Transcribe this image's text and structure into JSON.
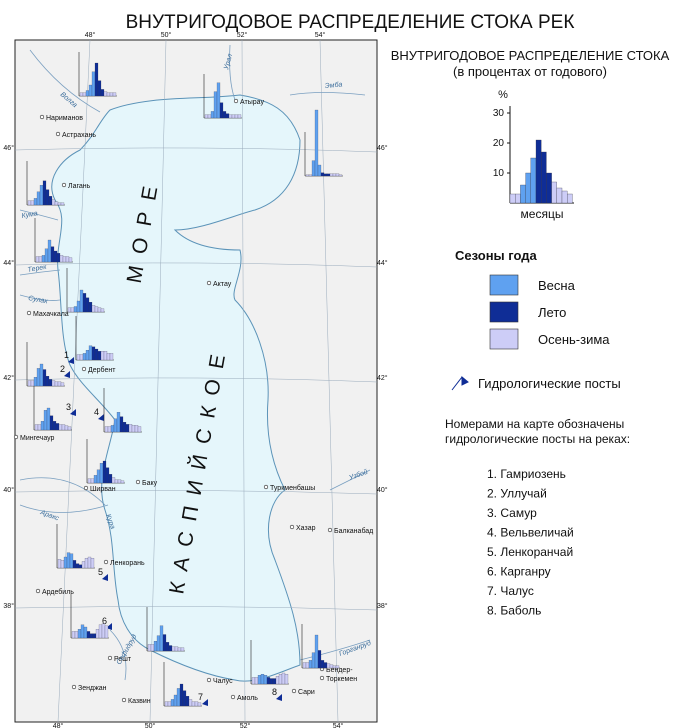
{
  "title": "ВНУТРИГОДОВОЕ РАСПРЕДЕЛЕНИЕ СТОКА РЕК",
  "legend": {
    "chart_title": "ВНУТРИГОДОВОЕ РАСПРЕДЕЛЕНИЕ СТОКА",
    "chart_subtitle": "(в процентах от годового)",
    "chart_data": {
      "type": "bar",
      "y_label": "%",
      "x_label": "месяцы",
      "values": [
        3,
        3,
        6,
        10,
        15,
        21,
        17,
        10,
        7,
        5,
        4,
        3
      ],
      "ylim": [
        0,
        35
      ],
      "yticks": [
        10,
        20,
        30
      ]
    },
    "seasons_title": "Сезоны года",
    "seasons": [
      {
        "name": "Весна",
        "color": "#5fa1f0"
      },
      {
        "name": "Лето",
        "color": "#0f2d96"
      },
      {
        "name": "Осень-зима",
        "color": "#cdcdf7"
      }
    ],
    "posts_label": "Гидрологические посты",
    "numbers_note": [
      "Номерами на карте обозначены",
      "гидрологические посты на реках:"
    ],
    "rivers_list": [
      "1. Гамриозень",
      "2. Уллучай",
      "3. Самур",
      "4. Вельвеличай",
      "5. Ленкоранчай",
      "6. Карганру",
      "7. Чалус",
      "8. Баболь"
    ]
  },
  "map": {
    "sea_name": [
      "МОРЕ",
      "КАСПИЙСКОЕ"
    ],
    "cities": [
      "Нариманов",
      "Астрахань",
      "Лагань",
      "Махачкала",
      "Дербент",
      "Мингечаур",
      "Ширван",
      "Баку",
      "Ленкорань",
      "Ардебиль",
      "Решт",
      "Зенджан",
      "Казвин",
      "Чалус",
      "Амоль",
      "Сари",
      "Бендер-",
      "Торкемен",
      "Хазар",
      "Туркменбашы",
      "Балканабад",
      "Актау",
      "Атырау"
    ],
    "rivers": [
      "Волга",
      "Урал",
      "Эмба",
      "Кума",
      "Терек",
      "Сулак",
      "Кура",
      "Аракс",
      "Сефидруд",
      "Горганруд",
      "Узбой"
    ],
    "post_numbers": [
      "1",
      "2",
      "3",
      "4",
      "5",
      "6",
      "7",
      "8"
    ],
    "lon_labels": [
      "48°",
      "50°",
      "52°",
      "54°"
    ],
    "lat_labels": [
      "46°",
      "44°",
      "42°",
      "40°",
      "38°"
    ],
    "station_charts": [
      [
        3,
        3,
        5,
        10,
        22,
        30,
        14,
        6,
        4,
        3,
        3,
        3
      ],
      [
        3,
        3,
        6,
        24,
        32,
        14,
        6,
        4,
        3,
        3,
        3,
        3
      ],
      [
        1,
        1,
        14,
        60,
        10,
        3,
        2,
        2,
        2,
        2,
        2,
        1
      ],
      [
        4,
        4,
        6,
        12,
        18,
        22,
        14,
        8,
        5,
        3,
        2,
        2
      ],
      [
        5,
        5,
        6,
        12,
        20,
        14,
        10,
        8,
        6,
        5,
        5,
        4
      ],
      [
        4,
        4,
        5,
        10,
        20,
        17,
        13,
        9,
        6,
        5,
        4,
        3
      ],
      [
        5,
        5,
        6,
        9,
        13,
        12,
        10,
        8,
        8,
        8,
        6,
        6
      ],
      [
        5,
        5,
        8,
        16,
        20,
        15,
        9,
        6,
        5,
        4,
        4,
        3
      ],
      [
        5,
        5,
        8,
        18,
        20,
        13,
        8,
        6,
        5,
        5,
        4,
        3
      ],
      [
        5,
        5,
        6,
        12,
        18,
        14,
        9,
        7,
        7,
        6,
        6,
        5
      ],
      [
        4,
        4,
        7,
        12,
        18,
        20,
        14,
        8,
        5,
        3,
        3,
        2
      ],
      [
        8,
        7,
        10,
        14,
        13,
        7,
        4,
        3,
        6,
        9,
        10,
        9
      ],
      [
        6,
        6,
        8,
        12,
        10,
        6,
        4,
        4,
        8,
        12,
        13,
        11
      ],
      [
        6,
        6,
        9,
        14,
        23,
        15,
        8,
        5,
        4,
        4,
        3,
        3
      ],
      [
        4,
        4,
        6,
        10,
        16,
        20,
        14,
        9,
        6,
        4,
        4,
        3
      ],
      [
        6,
        6,
        8,
        9,
        8,
        6,
        5,
        5,
        7,
        9,
        10,
        9
      ],
      [
        5,
        5,
        7,
        14,
        30,
        16,
        7,
        5,
        4,
        3,
        2,
        2
      ]
    ]
  }
}
